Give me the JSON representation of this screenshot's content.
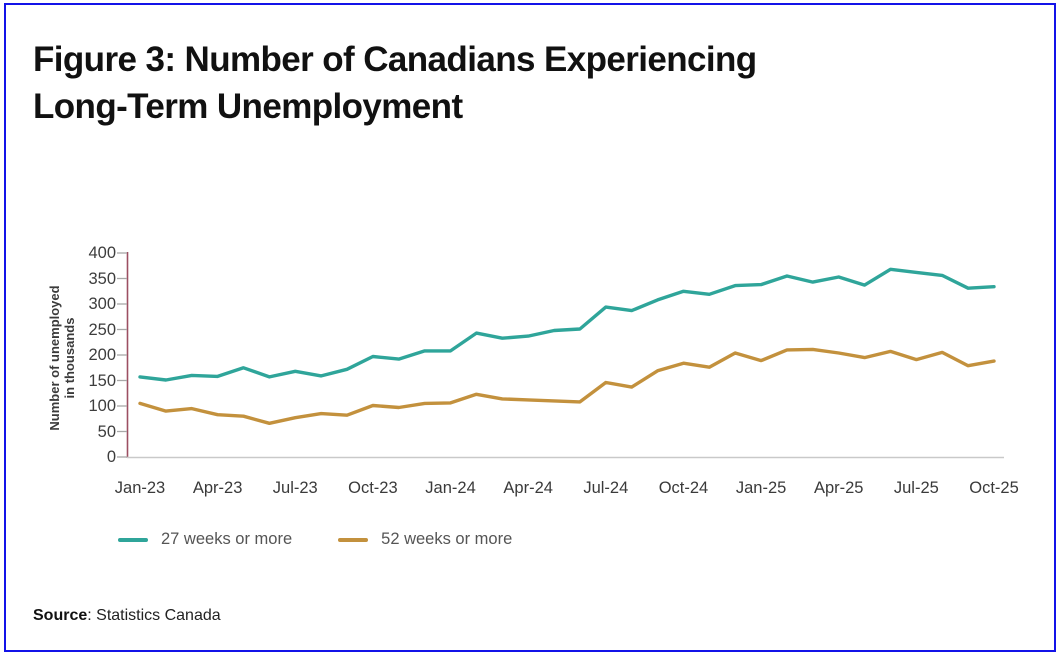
{
  "page": {
    "border_color": "#1313e8",
    "background_color": "#ffffff"
  },
  "title": {
    "line1": "Figure 3:  Number of Canadians Experiencing",
    "line2": "Long-Term Unemployment"
  },
  "source": {
    "label": "Source",
    "text": ": Statistics Canada"
  },
  "chart_data": {
    "type": "line",
    "title": "Figure 3: Number of Canadians Experiencing Long-Term Unemployment",
    "xlabel": "",
    "ylabel": "Number of unemployed in thousands",
    "ylabel_lines": [
      "Number of unemployed",
      "in thousands"
    ],
    "ylim": [
      0,
      400
    ],
    "yticks": [
      0,
      50,
      100,
      150,
      200,
      250,
      300,
      350,
      400
    ],
    "grid": false,
    "legend_position": "bottom-left",
    "categories": [
      "Jan-23",
      "Feb-23",
      "Mar-23",
      "Apr-23",
      "May-23",
      "Jun-23",
      "Jul-23",
      "Aug-23",
      "Sep-23",
      "Oct-23",
      "Nov-23",
      "Dec-23",
      "Jan-24",
      "Feb-24",
      "Mar-24",
      "Apr-24",
      "May-24",
      "Jun-24",
      "Jul-24",
      "Aug-24",
      "Sep-24",
      "Oct-24",
      "Nov-24",
      "Dec-24",
      "Jan-25",
      "Feb-25",
      "Mar-25",
      "Apr-25",
      "May-25",
      "Jun-25",
      "Jul-25",
      "Aug-25",
      "Sep-25",
      "Oct-25"
    ],
    "xtick_indices": [
      0,
      3,
      6,
      9,
      12,
      15,
      18,
      21,
      24,
      27,
      30,
      33
    ],
    "xtick_labels": [
      "Jan-23",
      "Apr-23",
      "Jul-23",
      "Oct-23",
      "Jan-24",
      "Apr-24",
      "Jul-24",
      "Oct-24",
      "Jan-25",
      "Apr-25",
      "Jul-25",
      "Oct-25"
    ],
    "series": [
      {
        "name": "27 weeks or more",
        "color": "#2fa59a",
        "values": [
          157,
          151,
          160,
          158,
          175,
          157,
          168,
          159,
          172,
          197,
          192,
          208,
          208,
          243,
          233,
          237,
          248,
          251,
          294,
          287,
          308,
          325,
          319,
          336,
          338,
          355,
          343,
          353,
          337,
          368,
          362,
          356,
          331,
          334
        ]
      },
      {
        "name": "52 weeks or more",
        "color": "#c3913d",
        "values": [
          105,
          90,
          95,
          83,
          80,
          66,
          77,
          85,
          82,
          101,
          97,
          105,
          106,
          123,
          114,
          112,
          110,
          108,
          146,
          137,
          169,
          184,
          176,
          204,
          189,
          210,
          211,
          204,
          195,
          207,
          191,
          205,
          179,
          188
        ]
      }
    ],
    "axis_style": {
      "y_axis_color": "#9c4f62",
      "x_axis_color": "#c9c9c9",
      "tick_color": "#a8a8a8",
      "tick_label_color": "#3d3d3d"
    }
  }
}
